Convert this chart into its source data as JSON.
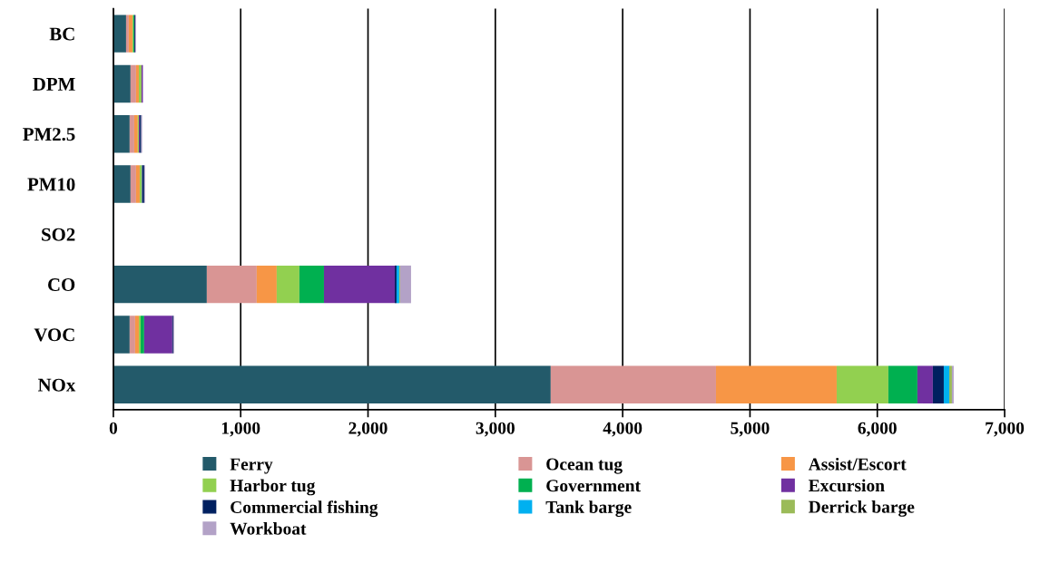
{
  "chart_data": {
    "type": "bar",
    "orientation": "horizontal",
    "stacked": true,
    "categories": [
      "BC",
      "DPM",
      "PM2.5",
      "PM10",
      "SO2",
      "CO",
      "VOC",
      "NOx"
    ],
    "series": [
      {
        "name": "Ferry",
        "color": "#235a6a",
        "values": [
          100,
          135,
          128,
          135,
          2,
          734,
          128,
          3435
        ]
      },
      {
        "name": "Ocean tug",
        "color": "#d99594",
        "values": [
          21,
          43,
          36,
          43,
          1,
          392,
          43,
          1298
        ]
      },
      {
        "name": "Assist/Escort",
        "color": "#f79646",
        "values": [
          29,
          22,
          28,
          29,
          0,
          157,
          29,
          948
        ]
      },
      {
        "name": "Harbor tug",
        "color": "#92d050",
        "values": [
          7,
          21,
          8,
          14,
          0,
          178,
          14,
          406
        ]
      },
      {
        "name": "Government",
        "color": "#00b050",
        "values": [
          7,
          null,
          null,
          4,
          0,
          193,
          28,
          228
        ]
      },
      {
        "name": "Excursion",
        "color": "#7030a0",
        "values": [
          0,
          11,
          8,
          3,
          1,
          556,
          221,
          121
        ]
      },
      {
        "name": "Commercial fishing",
        "color": "#002060",
        "values": [
          7,
          0,
          11,
          14,
          0,
          14,
          7,
          86
        ]
      },
      {
        "name": "Tank barge",
        "color": "#00b0f0",
        "values": [
          0,
          0,
          0,
          0,
          0,
          21,
          0,
          43
        ]
      },
      {
        "name": "Derrick barge",
        "color": "#9bbb59",
        "values": [
          0,
          0,
          0,
          0,
          0,
          7,
          0,
          21
        ]
      },
      {
        "name": "Workboat",
        "color": "#b3a2c7",
        "values": [
          7,
          null,
          7,
          7,
          0,
          86,
          8,
          14
        ]
      }
    ],
    "xlim": [
      0,
      7000
    ],
    "xticks": [
      0,
      {
        "value": 1000,
        "label": "1,000"
      },
      {
        "value": 2000,
        "label": "2,000"
      },
      {
        "value": 3000,
        "label": "3,000"
      },
      {
        "value": 4000,
        "label": "4,000"
      },
      {
        "value": 5000,
        "label": "5,000"
      },
      {
        "value": 6000,
        "label": "6,000"
      },
      {
        "value": 7000,
        "label": "7,000"
      }
    ],
    "grid": "x",
    "legend": "bottom"
  }
}
